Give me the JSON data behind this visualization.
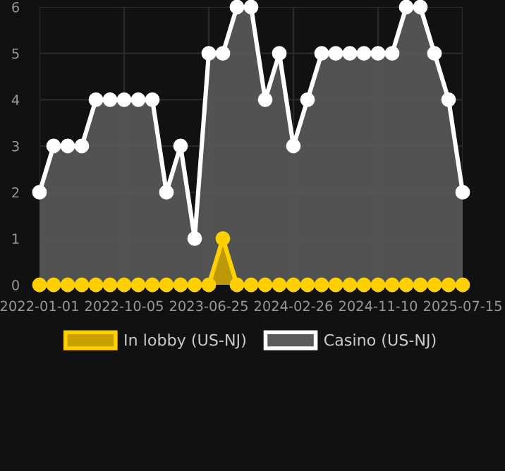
{
  "chart_data": {
    "type": "area",
    "categories": [
      "2022-01-01",
      null,
      null,
      null,
      null,
      null,
      "2022-10-05",
      null,
      null,
      null,
      null,
      null,
      "2023-06-25",
      null,
      null,
      null,
      null,
      null,
      "2024-02-26",
      null,
      null,
      null,
      null,
      null,
      "2024-11-10",
      null,
      null,
      null,
      null,
      null,
      "2025-07-15"
    ],
    "series": [
      {
        "name": "In lobby (US-NJ)",
        "color": "#ffd000",
        "values": [
          0,
          0,
          0,
          0,
          0,
          0,
          0,
          0,
          0,
          0,
          0,
          0,
          0,
          1,
          0,
          0,
          0,
          0,
          0,
          0,
          0,
          0,
          0,
          0,
          0,
          0,
          0,
          0,
          0,
          0,
          0
        ]
      },
      {
        "name": "Casino (US-NJ)",
        "color": "#ffffff",
        "values": [
          2,
          3,
          3,
          3,
          4,
          4,
          4,
          4,
          4,
          2,
          3,
          1,
          5,
          5,
          6,
          6,
          4,
          5,
          3,
          4,
          5,
          5,
          5,
          5,
          5,
          5,
          6,
          6,
          5,
          4,
          2
        ]
      }
    ],
    "ylim": [
      0,
      6
    ],
    "yticks": [
      0,
      1,
      2,
      3,
      4,
      5,
      6
    ],
    "grid": true,
    "legend": "bottom",
    "marker": "circle",
    "line_style": "solid"
  }
}
